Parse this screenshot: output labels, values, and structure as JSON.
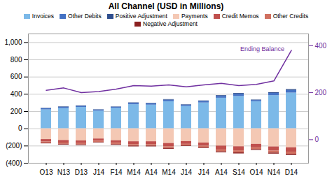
{
  "chart_data": {
    "type": "bar",
    "title": "All Channel (USD in Millions)",
    "stacked": true,
    "grid": true,
    "legend": "top",
    "categories": [
      "O13",
      "N13",
      "D13",
      "J14",
      "F14",
      "M14",
      "A14",
      "M14",
      "J14",
      "J14",
      "A14",
      "S14",
      "O14",
      "N14",
      "D14"
    ],
    "series": [
      {
        "name": "Invoices",
        "color": "#7cb9e8",
        "values": [
          220,
          235,
          248,
          205,
          238,
          280,
          275,
          315,
          260,
          300,
          355,
          375,
          315,
          385,
          415
        ]
      },
      {
        "name": "Other Debits",
        "color": "#4472c4",
        "values": [
          14,
          15,
          14,
          12,
          12,
          16,
          16,
          18,
          14,
          18,
          22,
          26,
          14,
          26,
          30
        ]
      },
      {
        "name": "Positive Adjustment",
        "color": "#2f4f8f",
        "values": [
          4,
          5,
          5,
          4,
          4,
          5,
          5,
          6,
          5,
          6,
          8,
          9,
          5,
          9,
          11
        ]
      },
      {
        "name": "Payments",
        "color": "#f4c8b4",
        "values": [
          -125,
          -135,
          -140,
          -118,
          -138,
          -150,
          -150,
          -170,
          -148,
          -165,
          -200,
          -208,
          -180,
          -210,
          -220
        ]
      },
      {
        "name": "Credit Memos",
        "color": "#c0504d",
        "values": [
          -28,
          -30,
          -31,
          -26,
          -30,
          -33,
          -33,
          -38,
          -32,
          -36,
          -45,
          -47,
          -40,
          -47,
          -50
        ]
      },
      {
        "name": "Other Credits",
        "color": "#d07060",
        "values": [
          -14,
          -15,
          -15,
          -13,
          -15,
          -17,
          -17,
          -19,
          -16,
          -18,
          -22,
          -24,
          -20,
          -24,
          -26
        ]
      },
      {
        "name": "Negative Adjustment",
        "color": "#8b2020",
        "values": [
          -7,
          -8,
          -8,
          -6,
          -8,
          -9,
          -9,
          -10,
          -8,
          -9,
          -11,
          -12,
          -10,
          -12,
          -13
        ]
      },
      {
        "name": "Ending Balance",
        "type": "line",
        "axis": "y2",
        "color": "#7030a0",
        "values": [
          210,
          220,
          200,
          205,
          215,
          230,
          228,
          233,
          225,
          233,
          240,
          230,
          235,
          250,
          380
        ]
      }
    ],
    "ylim": [
      -400,
      1100
    ],
    "yticks": [
      {
        "value": -400,
        "label": "(400)"
      },
      {
        "value": -200,
        "label": "(200)"
      },
      0,
      200,
      400,
      600,
      800,
      {
        "value": 1000,
        "label": "1,000"
      }
    ],
    "y2lim": [
      -100,
      450
    ],
    "y2ticks": [
      0,
      200,
      400
    ]
  }
}
